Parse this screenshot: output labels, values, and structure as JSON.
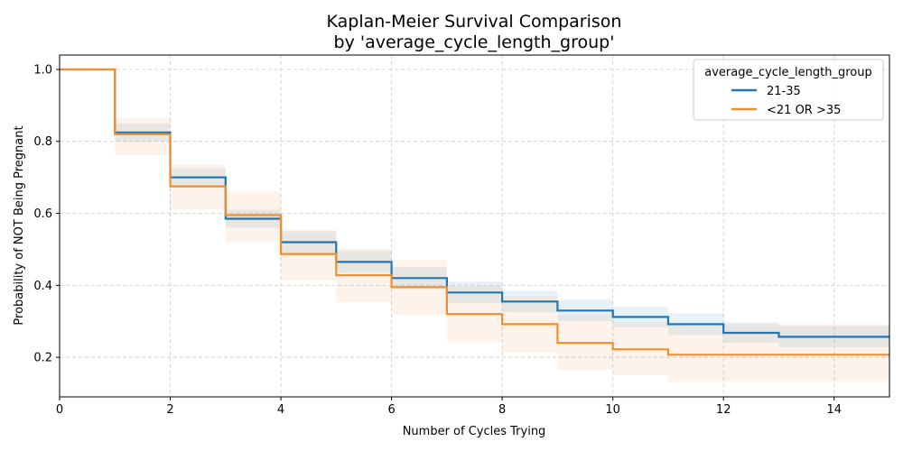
{
  "chart_data": {
    "type": "line",
    "step": true,
    "title": "Kaplan-Meier Survival Comparison",
    "subtitle": "by 'average_cycle_length_group'",
    "xlabel": "Number of Cycles Trying",
    "ylabel": "Probability of NOT Being Pregnant",
    "xlim": [
      0,
      15
    ],
    "ylim": [
      0.09,
      1.04
    ],
    "xticks": [
      0,
      2,
      4,
      6,
      8,
      10,
      12,
      14
    ],
    "yticks": [
      0.2,
      0.4,
      0.6,
      0.8,
      1.0
    ],
    "xtick_labels": [
      "0",
      "2",
      "4",
      "6",
      "8",
      "10",
      "12",
      "14"
    ],
    "ytick_labels": [
      "0.2",
      "0.4",
      "0.6",
      "0.8",
      "1.0"
    ],
    "grid": true,
    "legend": {
      "title": "average_cycle_length_group",
      "position": "top-right"
    },
    "series": [
      {
        "name": "21-35",
        "color": "#1f77b4",
        "x": [
          0,
          1,
          2,
          3,
          4,
          5,
          6,
          7,
          8,
          9,
          10,
          11,
          12,
          13,
          15
        ],
        "y": [
          1.0,
          0.825,
          0.7,
          0.585,
          0.52,
          0.465,
          0.42,
          0.38,
          0.355,
          0.33,
          0.312,
          0.292,
          0.268,
          0.257,
          0.257
        ],
        "ci_lower": [
          1.0,
          0.8,
          0.675,
          0.56,
          0.49,
          0.435,
          0.39,
          0.35,
          0.325,
          0.3,
          0.283,
          0.262,
          0.24,
          0.228,
          0.228
        ],
        "ci_upper": [
          1.0,
          0.85,
          0.725,
          0.61,
          0.55,
          0.495,
          0.45,
          0.41,
          0.385,
          0.36,
          0.34,
          0.322,
          0.297,
          0.287,
          0.287
        ]
      },
      {
        "name": "<21 OR >35",
        "color": "#ef8e2e",
        "x": [
          0,
          1,
          2,
          3,
          4,
          5,
          6,
          7,
          8,
          9,
          10,
          11,
          15
        ],
        "y": [
          1.0,
          0.82,
          0.675,
          0.595,
          0.487,
          0.428,
          0.395,
          0.32,
          0.292,
          0.24,
          0.222,
          0.207,
          0.207
        ],
        "ci_lower": [
          1.0,
          0.762,
          0.61,
          0.52,
          0.413,
          0.353,
          0.318,
          0.242,
          0.213,
          0.165,
          0.15,
          0.132,
          0.132
        ],
        "ci_upper": [
          1.0,
          0.865,
          0.735,
          0.66,
          0.555,
          0.503,
          0.47,
          0.398,
          0.37,
          0.318,
          0.297,
          0.292,
          0.292
        ]
      }
    ]
  }
}
